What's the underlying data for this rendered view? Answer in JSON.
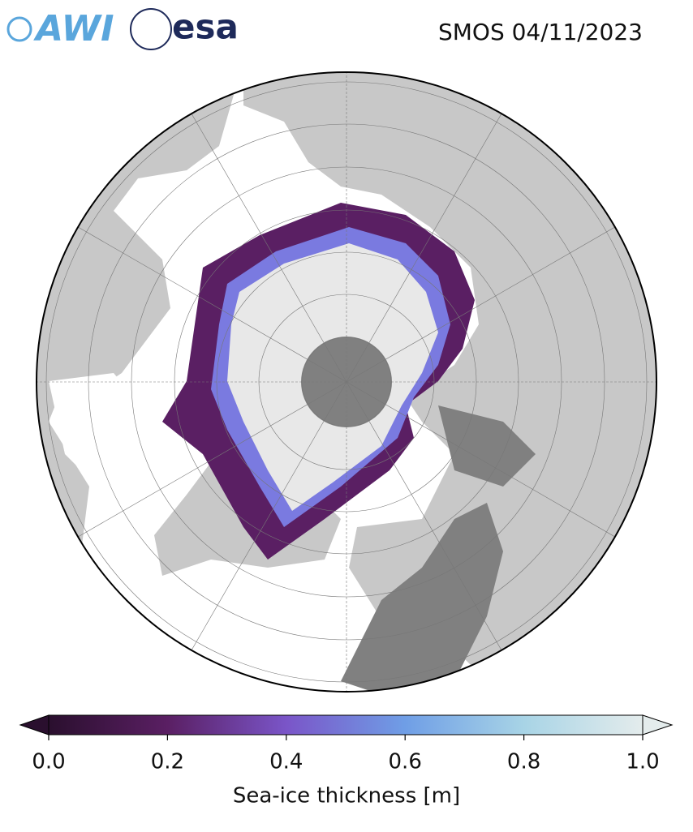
{
  "logos": [
    "AWI",
    "esa"
  ],
  "title": "SMOS 04/11/2023",
  "colorbar": {
    "label": "Sea-ice thickness [m]",
    "clim": [
      0,
      1
    ],
    "colors": [
      "#2a0f2e",
      "#5a1f63",
      "#7a55c8",
      "#6f9ee6",
      "#a8d4e6",
      "#e4ecec"
    ],
    "ticks": [
      {
        "value": 0,
        "label": "0.0"
      },
      {
        "value": 0.2,
        "label": "0.2"
      },
      {
        "value": 0.4,
        "label": "0.4"
      },
      {
        "value": 0.6,
        "label": "0.6"
      },
      {
        "value": 0.8,
        "label": "0.8"
      },
      {
        "value": 1,
        "label": "1.0"
      }
    ]
  }
}
